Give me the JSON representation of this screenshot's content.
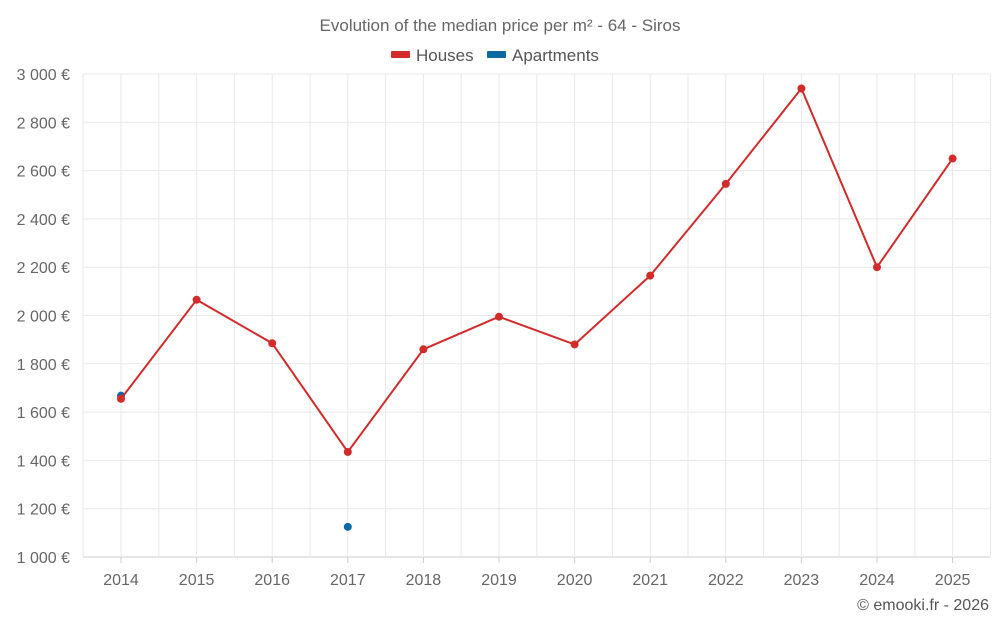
{
  "colors": {
    "houses": "#d32a2a",
    "apartments": "#0b6aa2"
  },
  "chart_data": {
    "type": "line",
    "title": "Evolution of the median price per m² - 64 - Siros",
    "x": [
      "2014",
      "2015",
      "2016",
      "2017",
      "2018",
      "2019",
      "2020",
      "2021",
      "2022",
      "2023",
      "2024",
      "2025"
    ],
    "series": [
      {
        "name": "Houses",
        "color": "#d32a2a",
        "values": [
          1655,
          2065,
          1885,
          1435,
          1860,
          1995,
          1880,
          2165,
          2545,
          2940,
          2200,
          2650
        ]
      },
      {
        "name": "Apartments",
        "color": "#0b6aa2",
        "values": [
          1668,
          null,
          null,
          1125,
          null,
          null,
          null,
          null,
          null,
          null,
          null,
          null
        ]
      }
    ],
    "ylim": [
      1000,
      3000
    ],
    "yticks": [
      1000,
      1200,
      1400,
      1600,
      1800,
      2000,
      2200,
      2400,
      2600,
      2800,
      3000
    ],
    "ytick_labels": [
      "1 000 €",
      "1 200 €",
      "1 400 €",
      "1 600 €",
      "1 800 €",
      "2 000 €",
      "2 200 €",
      "2 400 €",
      "2 600 €",
      "2 800 €",
      "3 000 €"
    ],
    "xlabel": "",
    "ylabel": "",
    "grid": true,
    "legend": "top-center"
  },
  "footer": {
    "credit": "© emooki.fr - 2026"
  }
}
